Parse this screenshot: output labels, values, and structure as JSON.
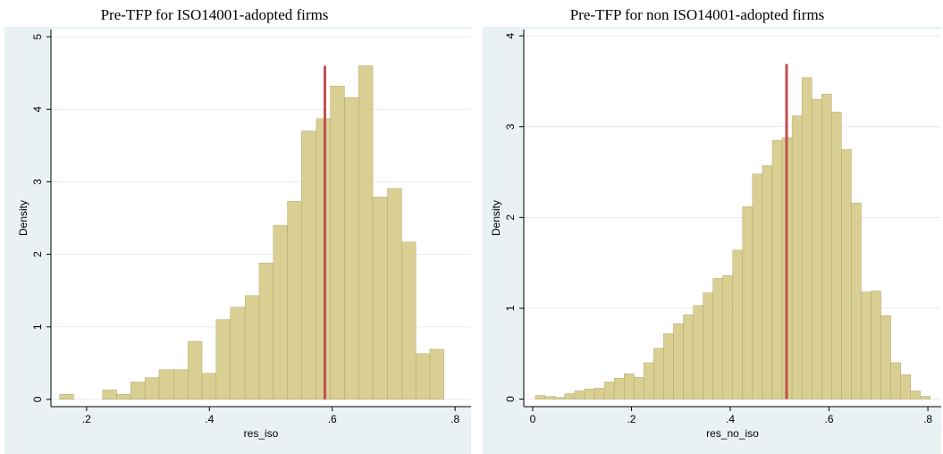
{
  "chart_data": [
    {
      "type": "histogram",
      "title": "Pre-TFP for ISO14001-adopted firms",
      "xlabel": "res_iso",
      "ylabel": "Density",
      "bins": [
        0.156,
        0.179,
        0.202,
        0.226,
        0.249,
        0.272,
        0.295,
        0.318,
        0.342,
        0.365,
        0.388,
        0.411,
        0.434,
        0.458,
        0.481,
        0.504,
        0.527,
        0.55,
        0.574,
        0.597,
        0.62,
        0.643,
        0.666,
        0.69,
        0.713,
        0.736,
        0.759,
        0.782
      ],
      "values": [
        0.07,
        0,
        0,
        0.13,
        0.07,
        0.24,
        0.3,
        0.41,
        0.41,
        0.8,
        0.36,
        1.1,
        1.27,
        1.43,
        1.88,
        2.4,
        2.73,
        3.7,
        3.87,
        4.32,
        4.16,
        4.6,
        2.79,
        2.91,
        2.17,
        0.63,
        0.69
      ],
      "color": "#d9cf93",
      "edgecolor": "#a89c5c",
      "xlim": [
        0.142,
        0.826
      ],
      "ylim": [
        -0.1,
        5.1
      ],
      "xticks": [
        {
          "value": 0.2,
          "label": ".2"
        },
        {
          "value": 0.4,
          "label": ".4"
        },
        {
          "value": 0.6,
          "label": ".6"
        },
        {
          "value": 0.8,
          "label": ".8"
        }
      ],
      "yticks": [
        0,
        1,
        2,
        3,
        4,
        5
      ],
      "grid": true,
      "reference_line": {
        "x": 0.588,
        "ymax": 4.6,
        "color": "#c0504d"
      }
    },
    {
      "type": "histogram",
      "title": "Pre-TFP for non ISO14001-adopted firms",
      "xlabel": "res_no_iso",
      "ylabel": "Density",
      "bins": [
        0.005,
        0.025,
        0.045,
        0.065,
        0.085,
        0.105,
        0.125,
        0.145,
        0.165,
        0.185,
        0.205,
        0.225,
        0.245,
        0.265,
        0.285,
        0.305,
        0.325,
        0.345,
        0.365,
        0.385,
        0.405,
        0.425,
        0.445,
        0.465,
        0.485,
        0.505,
        0.525,
        0.545,
        0.565,
        0.585,
        0.605,
        0.625,
        0.645,
        0.665,
        0.685,
        0.705,
        0.725,
        0.745,
        0.765,
        0.785,
        0.805
      ],
      "values": [
        0.04,
        0.03,
        0.02,
        0.06,
        0.09,
        0.11,
        0.12,
        0.19,
        0.23,
        0.28,
        0.24,
        0.4,
        0.56,
        0.72,
        0.83,
        0.93,
        1.03,
        1.17,
        1.33,
        1.36,
        1.64,
        2.12,
        2.48,
        2.57,
        2.85,
        2.88,
        3.12,
        3.54,
        3.3,
        3.36,
        3.16,
        2.75,
        2.16,
        1.18,
        1.19,
        0.92,
        0.4,
        0.27,
        0.09,
        0.03
      ],
      "color": "#d9cf93",
      "edgecolor": "#a89c5c",
      "xlim": [
        -0.018,
        0.827
      ],
      "ylim": [
        -0.083,
        4.07
      ],
      "xticks": [
        0,
        {
          "value": 0.2,
          "label": ".2"
        },
        {
          "value": 0.4,
          "label": ".4"
        },
        {
          "value": 0.6,
          "label": ".6"
        },
        {
          "value": 0.8,
          "label": ".8"
        }
      ],
      "yticks": [
        0,
        1,
        2,
        3,
        4
      ],
      "grid": true,
      "reference_line": {
        "x": 0.514,
        "ymax": 3.69,
        "color": "#c0504d"
      }
    }
  ]
}
